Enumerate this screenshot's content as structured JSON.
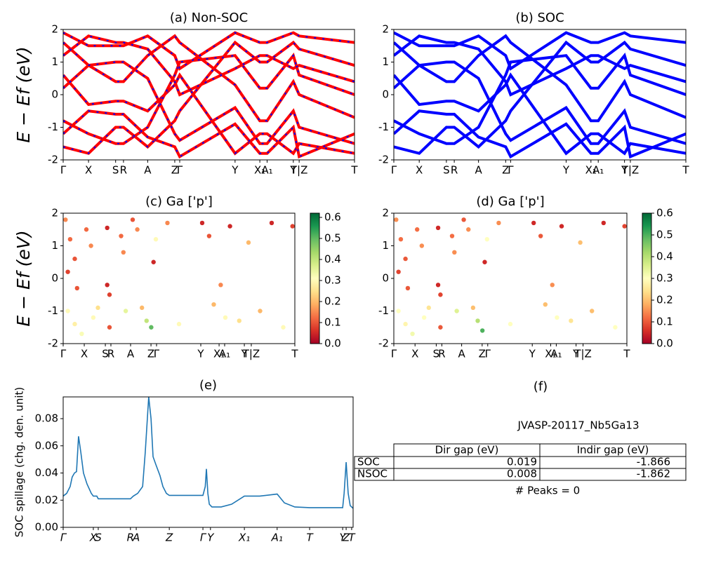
{
  "chart_data": [
    {
      "type": "line",
      "title": "(a) Non-SOC",
      "ylabel": "E − Ef (eV)",
      "xlim": [
        0,
        1
      ],
      "ylim": [
        -2,
        2
      ],
      "yticks": [
        -2,
        -1,
        0,
        1,
        2
      ],
      "xticks": [
        {
          "value": 0,
          "label": "Γ"
        },
        {
          "value": 0.087,
          "label": "X"
        },
        {
          "value": 0.18,
          "label": "S"
        },
        {
          "value": 0.207,
          "label": "R"
        },
        {
          "value": 0.29,
          "label": "A"
        },
        {
          "value": 0.383,
          "label": "Z"
        },
        {
          "value": 0.4,
          "label": "Γ"
        },
        {
          "value": 0.59,
          "label": "Y"
        },
        {
          "value": 0.675,
          "label": "X₁"
        },
        {
          "value": 0.7,
          "label": "A₁"
        },
        {
          "value": 0.79,
          "label": "Y"
        },
        {
          "value": 0.81,
          "label": "T|Z"
        },
        {
          "value": 1,
          "label": "T"
        }
      ],
      "x": [
        0,
        0.087,
        0.18,
        0.207,
        0.29,
        0.383,
        0.4,
        0.59,
        0.675,
        0.7,
        0.79,
        0.81,
        1
      ],
      "color": "#ff0000",
      "dash_color": "#0000ff",
      "series": [
        {
          "values": [
            0.6,
            -0.3,
            -0.2,
            -0.2,
            -0.5,
            0.3,
            0.6,
            -1.8,
            -1.2,
            -1.2,
            -1.8,
            -1.5,
            -1.8
          ]
        },
        {
          "values": [
            1.6,
            0.9,
            0.4,
            0.4,
            1.2,
            1.8,
            1.6,
            0.3,
            -0.8,
            -0.8,
            0.4,
            0.0,
            -0.7
          ]
        },
        {
          "values": [
            -0.8,
            -1.2,
            -1.5,
            -1.5,
            -1.0,
            0.6,
            1.0,
            1.2,
            0.2,
            0.2,
            1.2,
            0.6,
            0.0
          ]
        },
        {
          "values": [
            -1.6,
            -1.8,
            -1.0,
            -1.0,
            -1.6,
            -0.8,
            -0.5,
            1.6,
            1.0,
            1.0,
            1.6,
            1.4,
            0.9
          ]
        },
        {
          "values": [
            1.9,
            1.5,
            1.5,
            1.5,
            1.8,
            1.2,
            0.8,
            1.9,
            1.6,
            1.6,
            1.9,
            1.8,
            1.6
          ]
        },
        {
          "values": [
            -1.2,
            -0.5,
            -0.6,
            -0.6,
            -1.3,
            -1.6,
            -1.9,
            -0.9,
            -1.8,
            -1.8,
            -1.0,
            -1.9,
            -1.2
          ]
        },
        {
          "values": [
            0.2,
            0.9,
            1.0,
            1.0,
            0.5,
            -1.2,
            -1.4,
            -0.4,
            -1.5,
            -1.5,
            -0.5,
            -1.0,
            -1.5
          ]
        },
        {
          "values": [
            1.2,
            1.8,
            1.6,
            1.6,
            1.4,
            0.4,
            0.0,
            0.8,
            1.2,
            1.2,
            0.8,
            0.9,
            0.4
          ]
        }
      ]
    },
    {
      "type": "line",
      "title": "(b) SOC",
      "xlim": [
        0,
        1
      ],
      "ylim": [
        -2,
        2
      ],
      "yticks": [
        -2,
        -1,
        0,
        1,
        2
      ],
      "xticks": [
        {
          "value": 0,
          "label": "Γ"
        },
        {
          "value": 0.087,
          "label": "X"
        },
        {
          "value": 0.18,
          "label": "S"
        },
        {
          "value": 0.207,
          "label": "R"
        },
        {
          "value": 0.29,
          "label": "A"
        },
        {
          "value": 0.383,
          "label": "Z"
        },
        {
          "value": 0.4,
          "label": "Γ"
        },
        {
          "value": 0.59,
          "label": "Y"
        },
        {
          "value": 0.675,
          "label": "X₁"
        },
        {
          "value": 0.7,
          "label": "A₁"
        },
        {
          "value": 0.79,
          "label": "Y"
        },
        {
          "value": 0.81,
          "label": "T|Z"
        },
        {
          "value": 1,
          "label": "T"
        }
      ],
      "x": [
        0,
        0.087,
        0.18,
        0.207,
        0.29,
        0.383,
        0.4,
        0.59,
        0.675,
        0.7,
        0.79,
        0.81,
        1
      ],
      "color": "#0000ff",
      "series": [
        {
          "values": [
            0.6,
            -0.3,
            -0.2,
            -0.2,
            -0.5,
            0.3,
            0.6,
            -1.8,
            -1.2,
            -1.2,
            -1.8,
            -1.5,
            -1.8
          ]
        },
        {
          "values": [
            1.6,
            0.9,
            0.4,
            0.4,
            1.2,
            1.8,
            1.6,
            0.3,
            -0.8,
            -0.8,
            0.4,
            0.0,
            -0.7
          ]
        },
        {
          "values": [
            -0.8,
            -1.2,
            -1.5,
            -1.5,
            -1.0,
            0.6,
            1.0,
            1.2,
            0.2,
            0.2,
            1.2,
            0.6,
            0.0
          ]
        },
        {
          "values": [
            -1.6,
            -1.8,
            -1.0,
            -1.0,
            -1.6,
            -0.8,
            -0.5,
            1.6,
            1.0,
            1.0,
            1.6,
            1.4,
            0.9
          ]
        },
        {
          "values": [
            1.9,
            1.5,
            1.5,
            1.5,
            1.8,
            1.2,
            0.8,
            1.9,
            1.6,
            1.6,
            1.9,
            1.8,
            1.6
          ]
        },
        {
          "values": [
            -1.2,
            -0.5,
            -0.6,
            -0.6,
            -1.3,
            -1.6,
            -1.9,
            -0.9,
            -1.8,
            -1.8,
            -1.0,
            -1.9,
            -1.2
          ]
        },
        {
          "values": [
            0.2,
            0.9,
            1.0,
            1.0,
            0.5,
            -1.2,
            -1.4,
            -0.4,
            -1.5,
            -1.5,
            -0.5,
            -1.0,
            -1.5
          ]
        },
        {
          "values": [
            1.2,
            1.8,
            1.6,
            1.6,
            1.4,
            0.4,
            0.0,
            0.8,
            1.2,
            1.2,
            0.8,
            0.9,
            0.4
          ]
        }
      ]
    },
    {
      "type": "scatter",
      "title": "(c)  Ga ['p']",
      "ylabel": "E − Ef (eV)",
      "xlim": [
        0,
        1
      ],
      "ylim": [
        -2,
        2
      ],
      "yticks": [
        -2,
        -1,
        0,
        1,
        2
      ],
      "xticks": [
        {
          "value": 0,
          "label": "Γ"
        },
        {
          "value": 0.091,
          "label": "X"
        },
        {
          "value": 0.182,
          "label": "S"
        },
        {
          "value": 0.206,
          "label": "R"
        },
        {
          "value": 0.291,
          "label": "A"
        },
        {
          "value": 0.379,
          "label": "Z"
        },
        {
          "value": 0.403,
          "label": "Γ"
        },
        {
          "value": 0.594,
          "label": "Y"
        },
        {
          "value": 0.673,
          "label": "X₁"
        },
        {
          "value": 0.697,
          "label": "A₁"
        },
        {
          "value": 0.782,
          "label": "Y"
        },
        {
          "value": 0.812,
          "label": "T|Z"
        },
        {
          "value": 1,
          "label": "T"
        }
      ],
      "colormap": [
        "#a50026",
        "#d73027",
        "#f46d43",
        "#fdae61",
        "#fee08b",
        "#ffffbf",
        "#d9ef8b",
        "#a6d96a",
        "#66bd63",
        "#1a9850",
        "#006837"
      ],
      "clim": [
        0,
        0.62
      ],
      "cticks": [
        {
          "value": 0,
          "label": "0.0"
        },
        0.1,
        0.2,
        0.3,
        0.4,
        0.5,
        0.6
      ],
      "x": [
        0.01,
        0.03,
        0.05,
        0.02,
        0.06,
        0.02,
        0.05,
        0.08,
        0.1,
        0.12,
        0.13,
        0.15,
        0.19,
        0.19,
        0.2,
        0.2,
        0.25,
        0.26,
        0.27,
        0.3,
        0.32,
        0.34,
        0.36,
        0.38,
        0.39,
        0.4,
        0.45,
        0.5,
        0.6,
        0.63,
        0.65,
        0.68,
        0.7,
        0.72,
        0.76,
        0.8,
        0.85,
        0.9,
        0.95,
        0.99
      ],
      "values": [
        1.8,
        1.2,
        0.6,
        0.2,
        -0.3,
        -1.0,
        -1.4,
        -1.7,
        1.5,
        1.0,
        -1.2,
        -0.9,
        1.55,
        -0.2,
        -0.5,
        -1.5,
        1.3,
        0.8,
        -1.0,
        1.8,
        1.5,
        -0.9,
        -1.3,
        -1.5,
        0.5,
        1.2,
        1.7,
        -1.4,
        1.7,
        1.3,
        -0.8,
        -0.2,
        -1.2,
        1.6,
        -1.3,
        1.1,
        -1.0,
        1.7,
        -1.5,
        1.6
      ],
      "c": [
        0.15,
        0.12,
        0.1,
        0.08,
        0.1,
        0.3,
        0.28,
        0.32,
        0.12,
        0.15,
        0.3,
        0.25,
        0.05,
        0.05,
        0.08,
        0.1,
        0.12,
        0.15,
        0.35,
        0.1,
        0.15,
        0.2,
        0.4,
        0.5,
        0.05,
        0.3,
        0.15,
        0.3,
        0.05,
        0.1,
        0.2,
        0.15,
        0.3,
        0.05,
        0.25,
        0.2,
        0.2,
        0.05,
        0.3,
        0.08
      ]
    },
    {
      "type": "scatter",
      "title": "(d) Ga ['p']",
      "xlim": [
        0,
        1
      ],
      "ylim": [
        -2,
        2
      ],
      "yticks": [
        -2,
        -1,
        0,
        1,
        2
      ],
      "xticks": [
        {
          "value": 0,
          "label": "Γ"
        },
        {
          "value": 0.091,
          "label": "X"
        },
        {
          "value": 0.182,
          "label": "S"
        },
        {
          "value": 0.206,
          "label": "R"
        },
        {
          "value": 0.291,
          "label": "A"
        },
        {
          "value": 0.379,
          "label": "Z"
        },
        {
          "value": 0.403,
          "label": "Γ"
        },
        {
          "value": 0.594,
          "label": "Y"
        },
        {
          "value": 0.673,
          "label": "X₁"
        },
        {
          "value": 0.697,
          "label": "A₁"
        },
        {
          "value": 0.782,
          "label": "Y"
        },
        {
          "value": 0.812,
          "label": "T|Z"
        },
        {
          "value": 1,
          "label": "T"
        }
      ],
      "colormap": [
        "#a50026",
        "#d73027",
        "#f46d43",
        "#fdae61",
        "#fee08b",
        "#ffffbf",
        "#d9ef8b",
        "#a6d96a",
        "#66bd63",
        "#1a9850",
        "#006837"
      ],
      "clim": [
        0,
        0.6
      ],
      "cticks": [
        {
          "value": 0,
          "label": "0.0"
        },
        0.1,
        0.2,
        0.3,
        0.4,
        0.5,
        0.6
      ],
      "x": [
        0.01,
        0.03,
        0.05,
        0.02,
        0.06,
        0.02,
        0.05,
        0.08,
        0.1,
        0.12,
        0.13,
        0.15,
        0.19,
        0.19,
        0.2,
        0.2,
        0.25,
        0.26,
        0.27,
        0.3,
        0.32,
        0.34,
        0.36,
        0.38,
        0.39,
        0.4,
        0.45,
        0.5,
        0.6,
        0.63,
        0.65,
        0.68,
        0.7,
        0.72,
        0.76,
        0.8,
        0.85,
        0.9,
        0.95,
        0.99
      ],
      "values": [
        1.8,
        1.2,
        0.6,
        0.2,
        -0.3,
        -1.0,
        -1.4,
        -1.7,
        1.5,
        1.0,
        -1.2,
        -0.9,
        1.55,
        -0.2,
        -0.5,
        -1.5,
        1.3,
        0.8,
        -1.0,
        1.8,
        1.5,
        -0.9,
        -1.3,
        -1.6,
        0.5,
        1.2,
        1.7,
        -1.4,
        1.7,
        1.3,
        -0.8,
        -0.2,
        -1.2,
        1.6,
        -1.3,
        1.1,
        -1.0,
        1.7,
        -1.5,
        1.6
      ],
      "c": [
        0.15,
        0.12,
        0.1,
        0.08,
        0.1,
        0.3,
        0.28,
        0.32,
        0.12,
        0.15,
        0.3,
        0.25,
        0.05,
        0.05,
        0.08,
        0.1,
        0.12,
        0.15,
        0.35,
        0.1,
        0.15,
        0.2,
        0.4,
        0.5,
        0.05,
        0.3,
        0.15,
        0.3,
        0.05,
        0.1,
        0.2,
        0.15,
        0.3,
        0.05,
        0.25,
        0.2,
        0.2,
        0.05,
        0.3,
        0.08
      ]
    },
    {
      "type": "line",
      "title": "(e)",
      "ylabel": "SOC spillage (chg. den. unit)",
      "xlim": [
        0,
        1
      ],
      "ylim": [
        0,
        0.096
      ],
      "yticks": [
        {
          "value": 0,
          "label": "0.00"
        },
        {
          "value": 0.02,
          "label": "0.02"
        },
        {
          "value": 0.04,
          "label": "0.04"
        },
        {
          "value": 0.06,
          "label": "0.06"
        },
        {
          "value": 0.08,
          "label": "0.08"
        }
      ],
      "xticks": [
        {
          "value": 0,
          "label": "Γ"
        },
        {
          "value": 0.104,
          "label": "X"
        },
        {
          "value": 0.121,
          "label": "S"
        },
        {
          "value": 0.232,
          "label": "R"
        },
        {
          "value": 0.252,
          "label": "A"
        },
        {
          "value": 0.366,
          "label": "Z"
        },
        {
          "value": 0.482,
          "label": "Γ"
        },
        {
          "value": 0.508,
          "label": "Y"
        },
        {
          "value": 0.625,
          "label": "X₁"
        },
        {
          "value": 0.738,
          "label": "A₁"
        },
        {
          "value": 0.85,
          "label": "T"
        },
        {
          "value": 0.964,
          "label": "Y"
        },
        {
          "value": 0.976,
          "label": "Z"
        },
        {
          "value": 0.995,
          "label": "T"
        }
      ],
      "x": [
        0,
        0.012,
        0.024,
        0.031,
        0.039,
        0.046,
        0.053,
        0.061,
        0.07,
        0.082,
        0.097,
        0.104,
        0.116,
        0.121,
        0.232,
        0.242,
        0.257,
        0.274,
        0.283,
        0.295,
        0.303,
        0.31,
        0.32,
        0.334,
        0.344,
        0.356,
        0.366,
        0.482,
        0.49,
        0.494,
        0.499,
        0.504,
        0.513,
        0.545,
        0.581,
        0.625,
        0.678,
        0.738,
        0.763,
        0.799,
        0.85,
        0.964,
        0.969,
        0.976,
        0.983,
        0.99,
        1
      ],
      "color": "#1f77b4",
      "series": [
        {
          "values": [
            0.023,
            0.025,
            0.03,
            0.037,
            0.04,
            0.041,
            0.067,
            0.055,
            0.04,
            0.032,
            0.025,
            0.023,
            0.023,
            0.021,
            0.021,
            0.023,
            0.025,
            0.03,
            0.055,
            0.096,
            0.08,
            0.052,
            0.046,
            0.038,
            0.03,
            0.025,
            0.0235,
            0.0235,
            0.03,
            0.043,
            0.025,
            0.017,
            0.015,
            0.015,
            0.017,
            0.023,
            0.023,
            0.0245,
            0.018,
            0.015,
            0.0145,
            0.0145,
            0.025,
            0.048,
            0.025,
            0.016,
            0.014
          ]
        }
      ]
    }
  ],
  "table": {
    "title": "(f)",
    "name": "JVASP-20117_Nb5Ga13",
    "header": [
      "Dir gap (eV)",
      "Indir gap (eV)"
    ],
    "rows": [
      [
        "SOC",
        "0.019",
        "-1.866"
      ],
      [
        "NSOC",
        "0.008",
        "-1.862"
      ]
    ],
    "footer": "# Peaks = 0"
  }
}
